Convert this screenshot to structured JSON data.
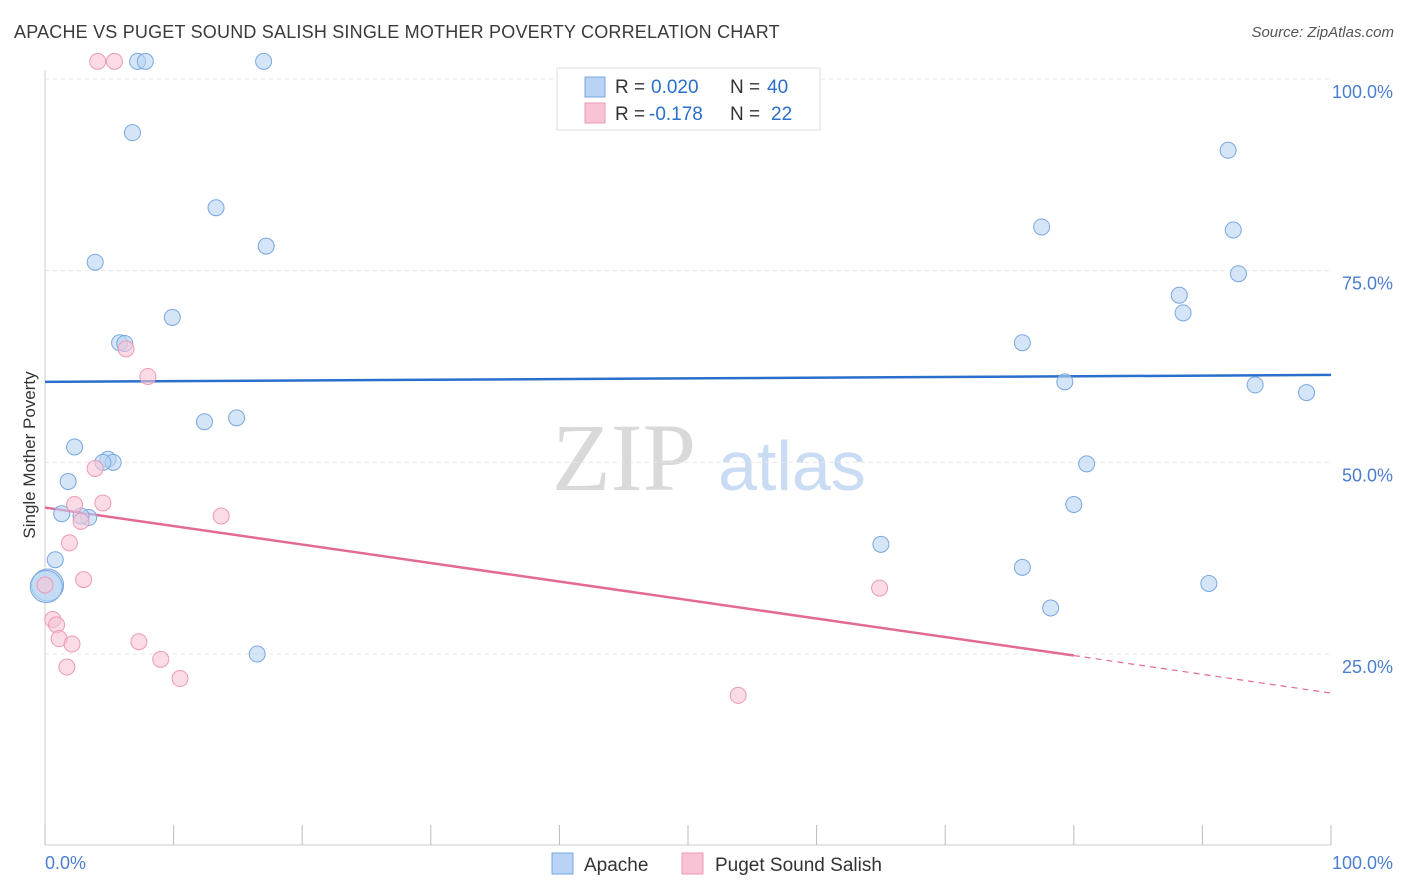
{
  "title": "APACHE VS PUGET SOUND SALISH SINGLE MOTHER POVERTY CORRELATION CHART",
  "source": "Source: ZipAtlas.com",
  "watermark": {
    "zip": "ZIP",
    "atlas": "atlas"
  },
  "colors": {
    "apache_fill": "#b8d3f3",
    "apache_stroke": "#7aa7e0",
    "apache_line": "#2a6fcb",
    "salish_fill": "#f8c4d5",
    "salish_stroke": "#ec9ab6",
    "salish_line": "#e46a96",
    "tick_text": "#4a7fd0"
  },
  "legend": {
    "apache": {
      "r_label": "R =",
      "r_value": "0.020",
      "n_label": "N =",
      "n_value": "40"
    },
    "salish": {
      "r_label": "R =",
      "r_value": "-0.178",
      "n_label": "N =",
      "n_value": "22"
    }
  },
  "bottom_legend": {
    "apache": "Apache",
    "salish": "Puget Sound Salish"
  },
  "chart_data": {
    "type": "scatter",
    "title": "APACHE VS PUGET SOUND SALISH SINGLE MOTHER POVERTY CORRELATION CHART",
    "xlabel": "",
    "ylabel": "Single Mother Poverty",
    "xlim": [
      0,
      100
    ],
    "ylim": [
      0,
      102
    ],
    "x_tick_labels": {
      "left": "0.0%",
      "right": "100.0%"
    },
    "y_ticks": [
      {
        "value": 100,
        "label": "100.0%"
      },
      {
        "value": 75,
        "label": "75.0%"
      },
      {
        "value": 50,
        "label": "50.0%"
      },
      {
        "value": 25,
        "label": "25.0%"
      }
    ],
    "grid": true,
    "legend_position": "top-center",
    "series": [
      {
        "name": "Apache",
        "points": [
          [
            7.2,
            102.3
          ],
          [
            7.8,
            102.3
          ],
          [
            17.0,
            102.3
          ],
          [
            6.8,
            93.0
          ],
          [
            13.3,
            83.2
          ],
          [
            17.2,
            78.2
          ],
          [
            3.9,
            76.1
          ],
          [
            9.9,
            68.9
          ],
          [
            5.8,
            65.6
          ],
          [
            6.2,
            65.5
          ],
          [
            12.4,
            55.3
          ],
          [
            14.9,
            55.8
          ],
          [
            2.3,
            52.0
          ],
          [
            4.9,
            50.4
          ],
          [
            5.3,
            50.0
          ],
          [
            4.5,
            50.0
          ],
          [
            1.8,
            47.5
          ],
          [
            1.3,
            43.3
          ],
          [
            3.4,
            42.8
          ],
          [
            2.8,
            43.0
          ],
          [
            0.8,
            37.3
          ],
          [
            0.2,
            34.0
          ],
          [
            16.5,
            25.0
          ],
          [
            65.0,
            39.3
          ],
          [
            77.5,
            80.7
          ],
          [
            92.0,
            90.7
          ],
          [
            92.4,
            80.3
          ],
          [
            92.8,
            74.6
          ],
          [
            88.2,
            71.8
          ],
          [
            88.5,
            69.5
          ],
          [
            76.0,
            65.6
          ],
          [
            79.3,
            60.5
          ],
          [
            94.1,
            60.1
          ],
          [
            98.1,
            59.1
          ],
          [
            81.0,
            49.8
          ],
          [
            80.0,
            44.5
          ],
          [
            76.0,
            36.3
          ],
          [
            90.5,
            34.2
          ],
          [
            78.2,
            31.0
          ],
          [
            0.1,
            33.8
          ]
        ],
        "trend": {
          "x0": 0,
          "y0": 60.5,
          "x1": 100,
          "y1": 61.4
        }
      },
      {
        "name": "Puget Sound Salish",
        "points": [
          [
            4.1,
            102.3
          ],
          [
            5.4,
            102.3
          ],
          [
            6.3,
            64.8
          ],
          [
            8.0,
            61.2
          ],
          [
            3.9,
            49.2
          ],
          [
            4.5,
            44.7
          ],
          [
            2.3,
            44.5
          ],
          [
            2.8,
            42.3
          ],
          [
            13.7,
            43.0
          ],
          [
            1.9,
            39.5
          ],
          [
            3.0,
            34.7
          ],
          [
            0.0,
            34.0
          ],
          [
            0.6,
            29.5
          ],
          [
            0.9,
            28.8
          ],
          [
            1.1,
            27.0
          ],
          [
            2.1,
            26.3
          ],
          [
            7.3,
            26.6
          ],
          [
            9.0,
            24.3
          ],
          [
            1.7,
            23.3
          ],
          [
            10.5,
            21.8
          ],
          [
            53.9,
            19.6
          ],
          [
            64.9,
            33.6
          ]
        ],
        "trend": {
          "x0": 0,
          "y0": 44.1,
          "x1": 80,
          "y1": 24.8,
          "dash_x1": 100,
          "dash_y1": 19.9
        }
      }
    ]
  }
}
